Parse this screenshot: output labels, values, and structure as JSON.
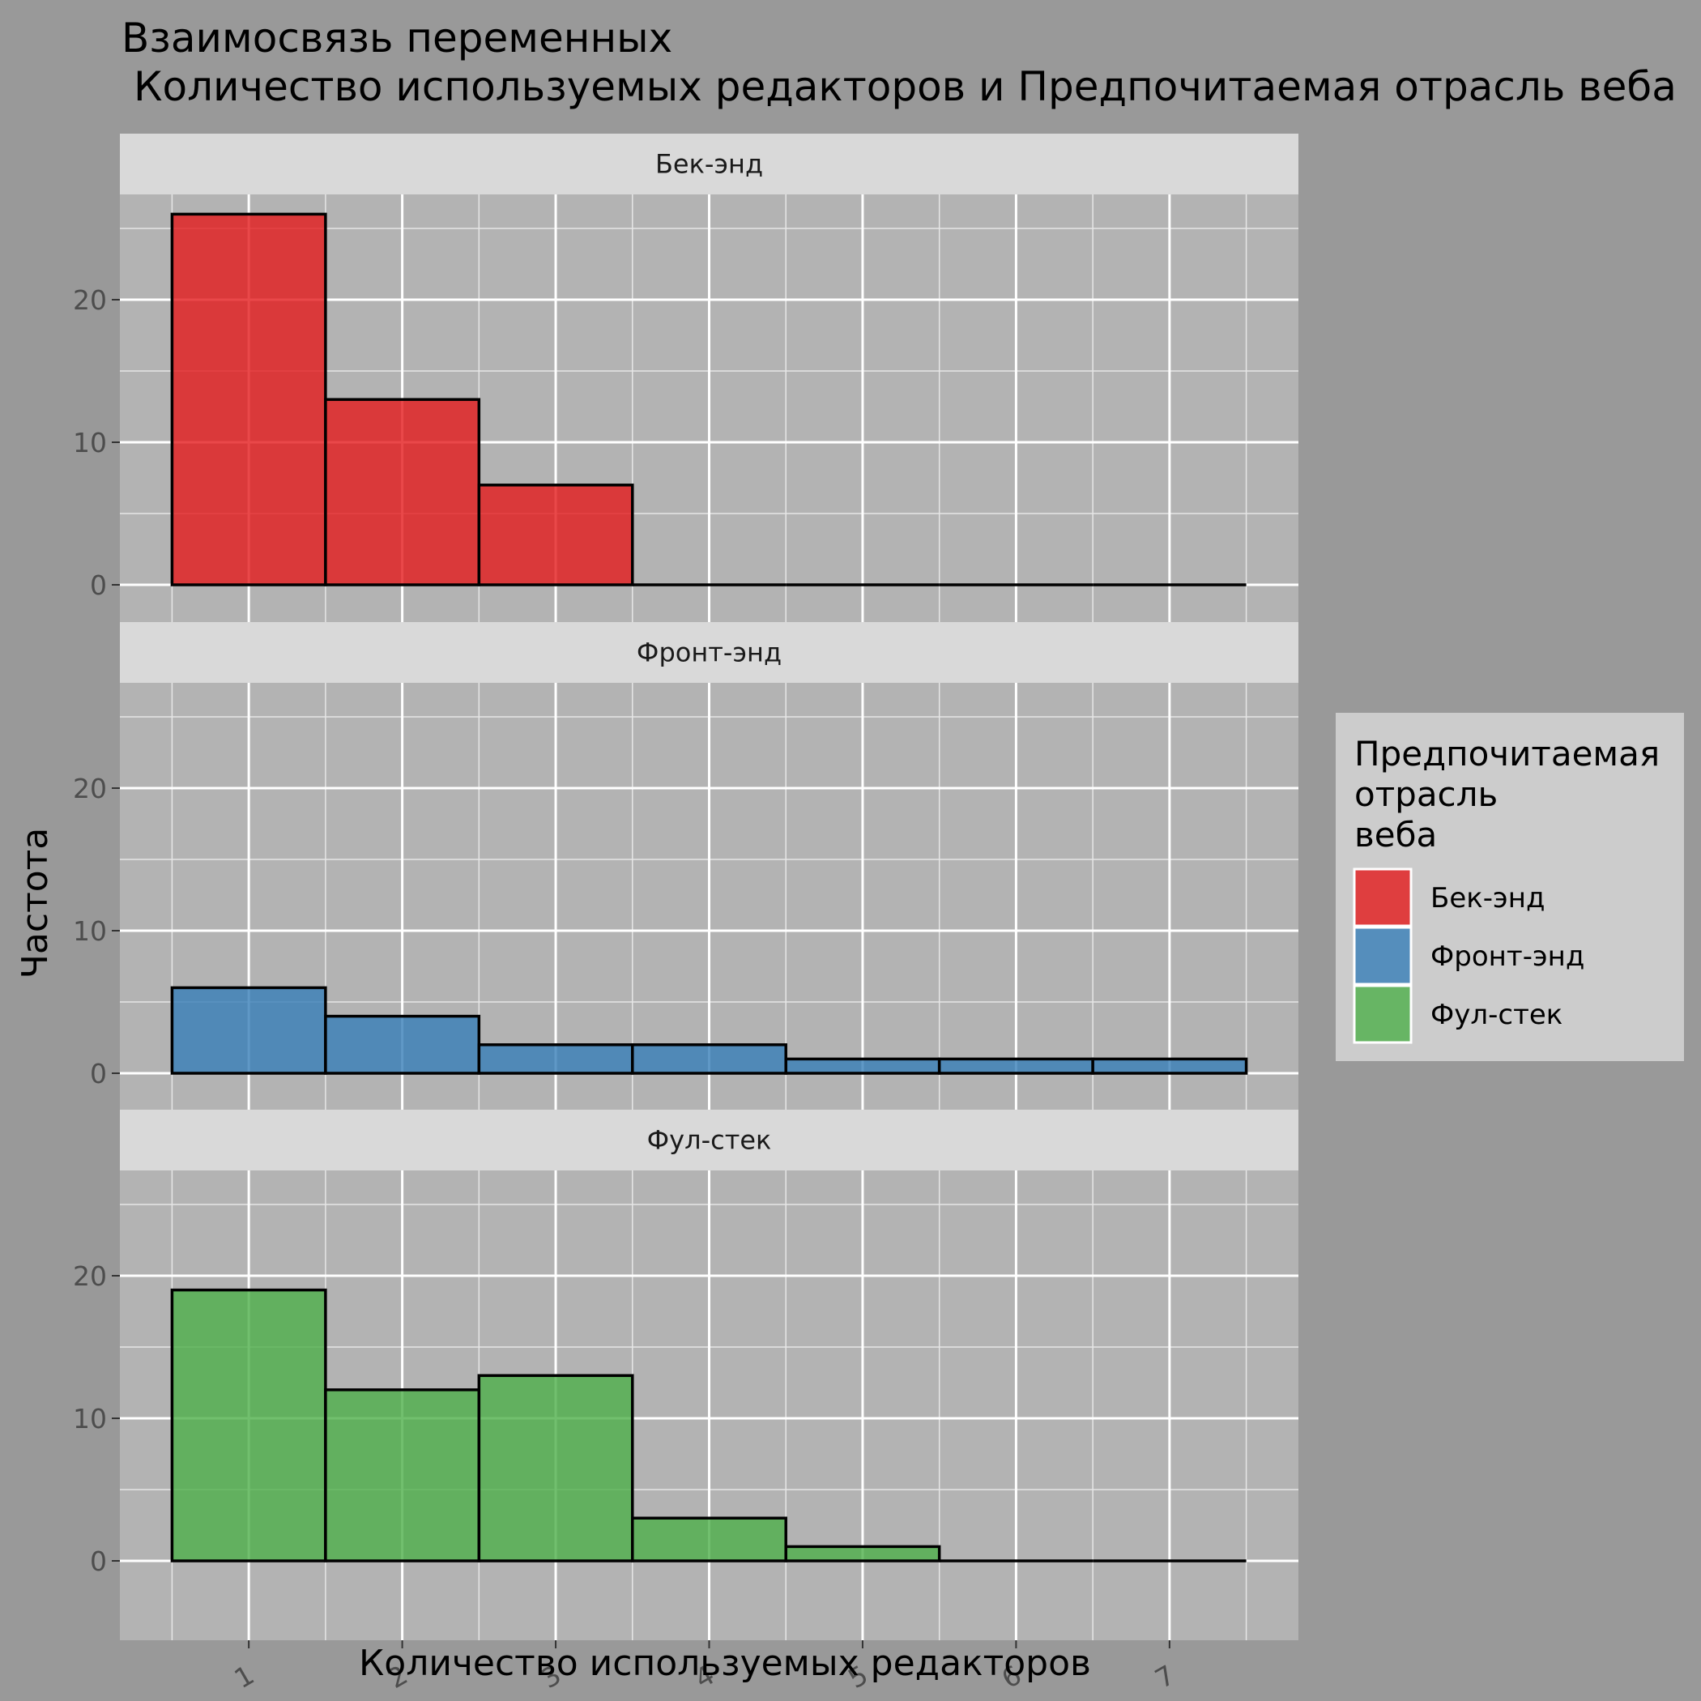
{
  "chart_data": {
    "type": "bar",
    "title_line1": "Взаимосвязь переменных",
    "title_line2": "Количество используемых редакторов и Предпочитаемая отрасль веба",
    "xlabel": "Количество используемых редакторов",
    "ylabel": "Частота",
    "categories": [
      "1",
      "2",
      "3",
      "4",
      "5",
      "6",
      "7"
    ],
    "x": [
      1,
      2,
      3,
      4,
      5,
      6,
      7
    ],
    "xlim": [
      0.5,
      7.5
    ],
    "ylim": [
      0,
      26
    ],
    "yticks": [
      "0",
      "10",
      "20"
    ],
    "grid": true,
    "legend_position": "right",
    "legend": {
      "title_lines": [
        "Предпочитаемая",
        "отрасль",
        "веба"
      ],
      "entries": [
        "Бек-энд",
        "Фронт-энд",
        "Фул-стек"
      ]
    },
    "series": [
      {
        "name": "Бек-энд",
        "color": "#e41a1c",
        "values": [
          26,
          13,
          7,
          0,
          0,
          0,
          0
        ]
      },
      {
        "name": "Фронт-энд",
        "color": "#377eb8",
        "values": [
          6,
          4,
          2,
          2,
          1,
          1,
          1
        ]
      },
      {
        "name": "Фул-стек",
        "color": "#4daf4a",
        "values": [
          19,
          12,
          13,
          3,
          1,
          0,
          0
        ]
      }
    ]
  }
}
